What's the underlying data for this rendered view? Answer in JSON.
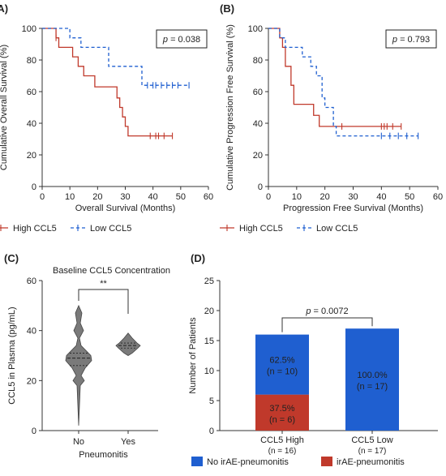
{
  "panels": {
    "A": {
      "label": "(A)",
      "ylabel": "Cumulative Overall Survival (%)",
      "xlabel": "Overall Survival (Months)",
      "p_text": "p = 0.038",
      "legend": [
        {
          "name": "High CCL5",
          "color": "#c0392b",
          "dash": false
        },
        {
          "name": "Low CCL5",
          "color": "#1f5fd0",
          "dash": true
        }
      ]
    },
    "B": {
      "label": "(B)",
      "ylabel": "Cumulative Progression Free Survival (%)",
      "xlabel": "Progression Free Survival (Months)",
      "p_text": "p = 0.793",
      "legend": [
        {
          "name": "High CCL5",
          "color": "#c0392b",
          "dash": false
        },
        {
          "name": "Low CCL5",
          "color": "#1f5fd0",
          "dash": true
        }
      ]
    },
    "C": {
      "label": "(C)",
      "title": "Baseline CCL5 Concentration",
      "ylabel": "CCL5 in Plasma (pg/mL)",
      "xlabel": "Pneumonitis",
      "sig": "**"
    },
    "D": {
      "label": "(D)",
      "ylabel": "Number of Patients",
      "p_text": "p = 0.0072",
      "legend": [
        {
          "name": "No irAE-pneumonitis",
          "color": "#1f5fd0"
        },
        {
          "name": "irAE-pneumonitis",
          "color": "#c0392b"
        }
      ]
    }
  },
  "chart_data": [
    {
      "type": "line",
      "panel": "A",
      "xlim": [
        0,
        60
      ],
      "ylim": [
        0,
        100
      ],
      "xticks": [
        0,
        10,
        20,
        30,
        40,
        50,
        60
      ],
      "yticks": [
        0,
        20,
        40,
        60,
        80,
        100
      ],
      "series": [
        {
          "name": "High CCL5",
          "color": "#c0392b",
          "dash": false,
          "x": [
            0,
            4,
            5,
            6,
            11,
            13,
            15,
            19,
            27,
            28,
            29,
            30,
            31,
            47
          ],
          "y": [
            100,
            100,
            94,
            88,
            82,
            76,
            70,
            63,
            56,
            50,
            44,
            38,
            32,
            32
          ],
          "censor_x": [
            5,
            39,
            41,
            42,
            44,
            47
          ]
        },
        {
          "name": "Low CCL5",
          "color": "#1f5fd0",
          "dash": true,
          "x": [
            0,
            8,
            10,
            14,
            24,
            36,
            53
          ],
          "y": [
            100,
            100,
            94,
            88,
            76,
            64,
            64
          ],
          "censor_x": [
            38,
            40,
            41,
            43,
            45,
            47,
            49,
            53
          ]
        }
      ]
    },
    {
      "type": "line",
      "panel": "B",
      "xlim": [
        0,
        60
      ],
      "ylim": [
        0,
        100
      ],
      "xticks": [
        0,
        10,
        20,
        30,
        40,
        50,
        60
      ],
      "yticks": [
        0,
        20,
        40,
        60,
        80,
        100
      ],
      "series": [
        {
          "name": "High CCL5",
          "color": "#c0392b",
          "dash": false,
          "x": [
            0,
            3,
            4,
            5,
            6,
            8,
            9,
            16,
            18,
            47
          ],
          "y": [
            100,
            100,
            94,
            88,
            76,
            64,
            52,
            45,
            38,
            38
          ],
          "censor_x": [
            26,
            40,
            41,
            42,
            44,
            47
          ]
        },
        {
          "name": "Low CCL5",
          "color": "#1f5fd0",
          "dash": true,
          "x": [
            0,
            4,
            6,
            12,
            15,
            17,
            19,
            20,
            23,
            24,
            53
          ],
          "y": [
            100,
            94,
            88,
            82,
            76,
            70,
            56,
            50,
            38,
            32,
            32
          ],
          "censor_x": [
            40,
            43,
            46,
            49,
            53
          ]
        }
      ]
    },
    {
      "type": "violin",
      "panel": "C",
      "ylim": [
        0,
        60
      ],
      "yticks": [
        0,
        20,
        40,
        60
      ],
      "categories": [
        "No",
        "Yes"
      ],
      "series": [
        {
          "name": "No",
          "color": "#7a7a7a",
          "min": 2,
          "q1": 26,
          "median": 29,
          "q3": 31,
          "max": 50
        },
        {
          "name": "Yes",
          "color": "#7a7a7a",
          "min": 30,
          "q1": 33,
          "median": 34,
          "q3": 35,
          "max": 39
        }
      ]
    },
    {
      "type": "bar",
      "panel": "D",
      "stacked": true,
      "ylim": [
        0,
        25
      ],
      "yticks": [
        0,
        5,
        10,
        15,
        20,
        25
      ],
      "categories": [
        "CCL5 High",
        "CCL5 Low"
      ],
      "category_sub": [
        "(n = 16)",
        "(n = 17)"
      ],
      "series": [
        {
          "name": "irAE-pneumonitis",
          "color": "#c0392b",
          "values": [
            6,
            0
          ],
          "labels": [
            [
              "37.5%",
              "(n = 6)"
            ],
            [
              "",
              ""
            ]
          ]
        },
        {
          "name": "No irAE-pneumonitis",
          "color": "#1f5fd0",
          "values": [
            10,
            17
          ],
          "labels": [
            [
              "62.5%",
              "(n = 10)"
            ],
            [
              "100.0%",
              "(n = 17)"
            ]
          ]
        }
      ]
    }
  ]
}
